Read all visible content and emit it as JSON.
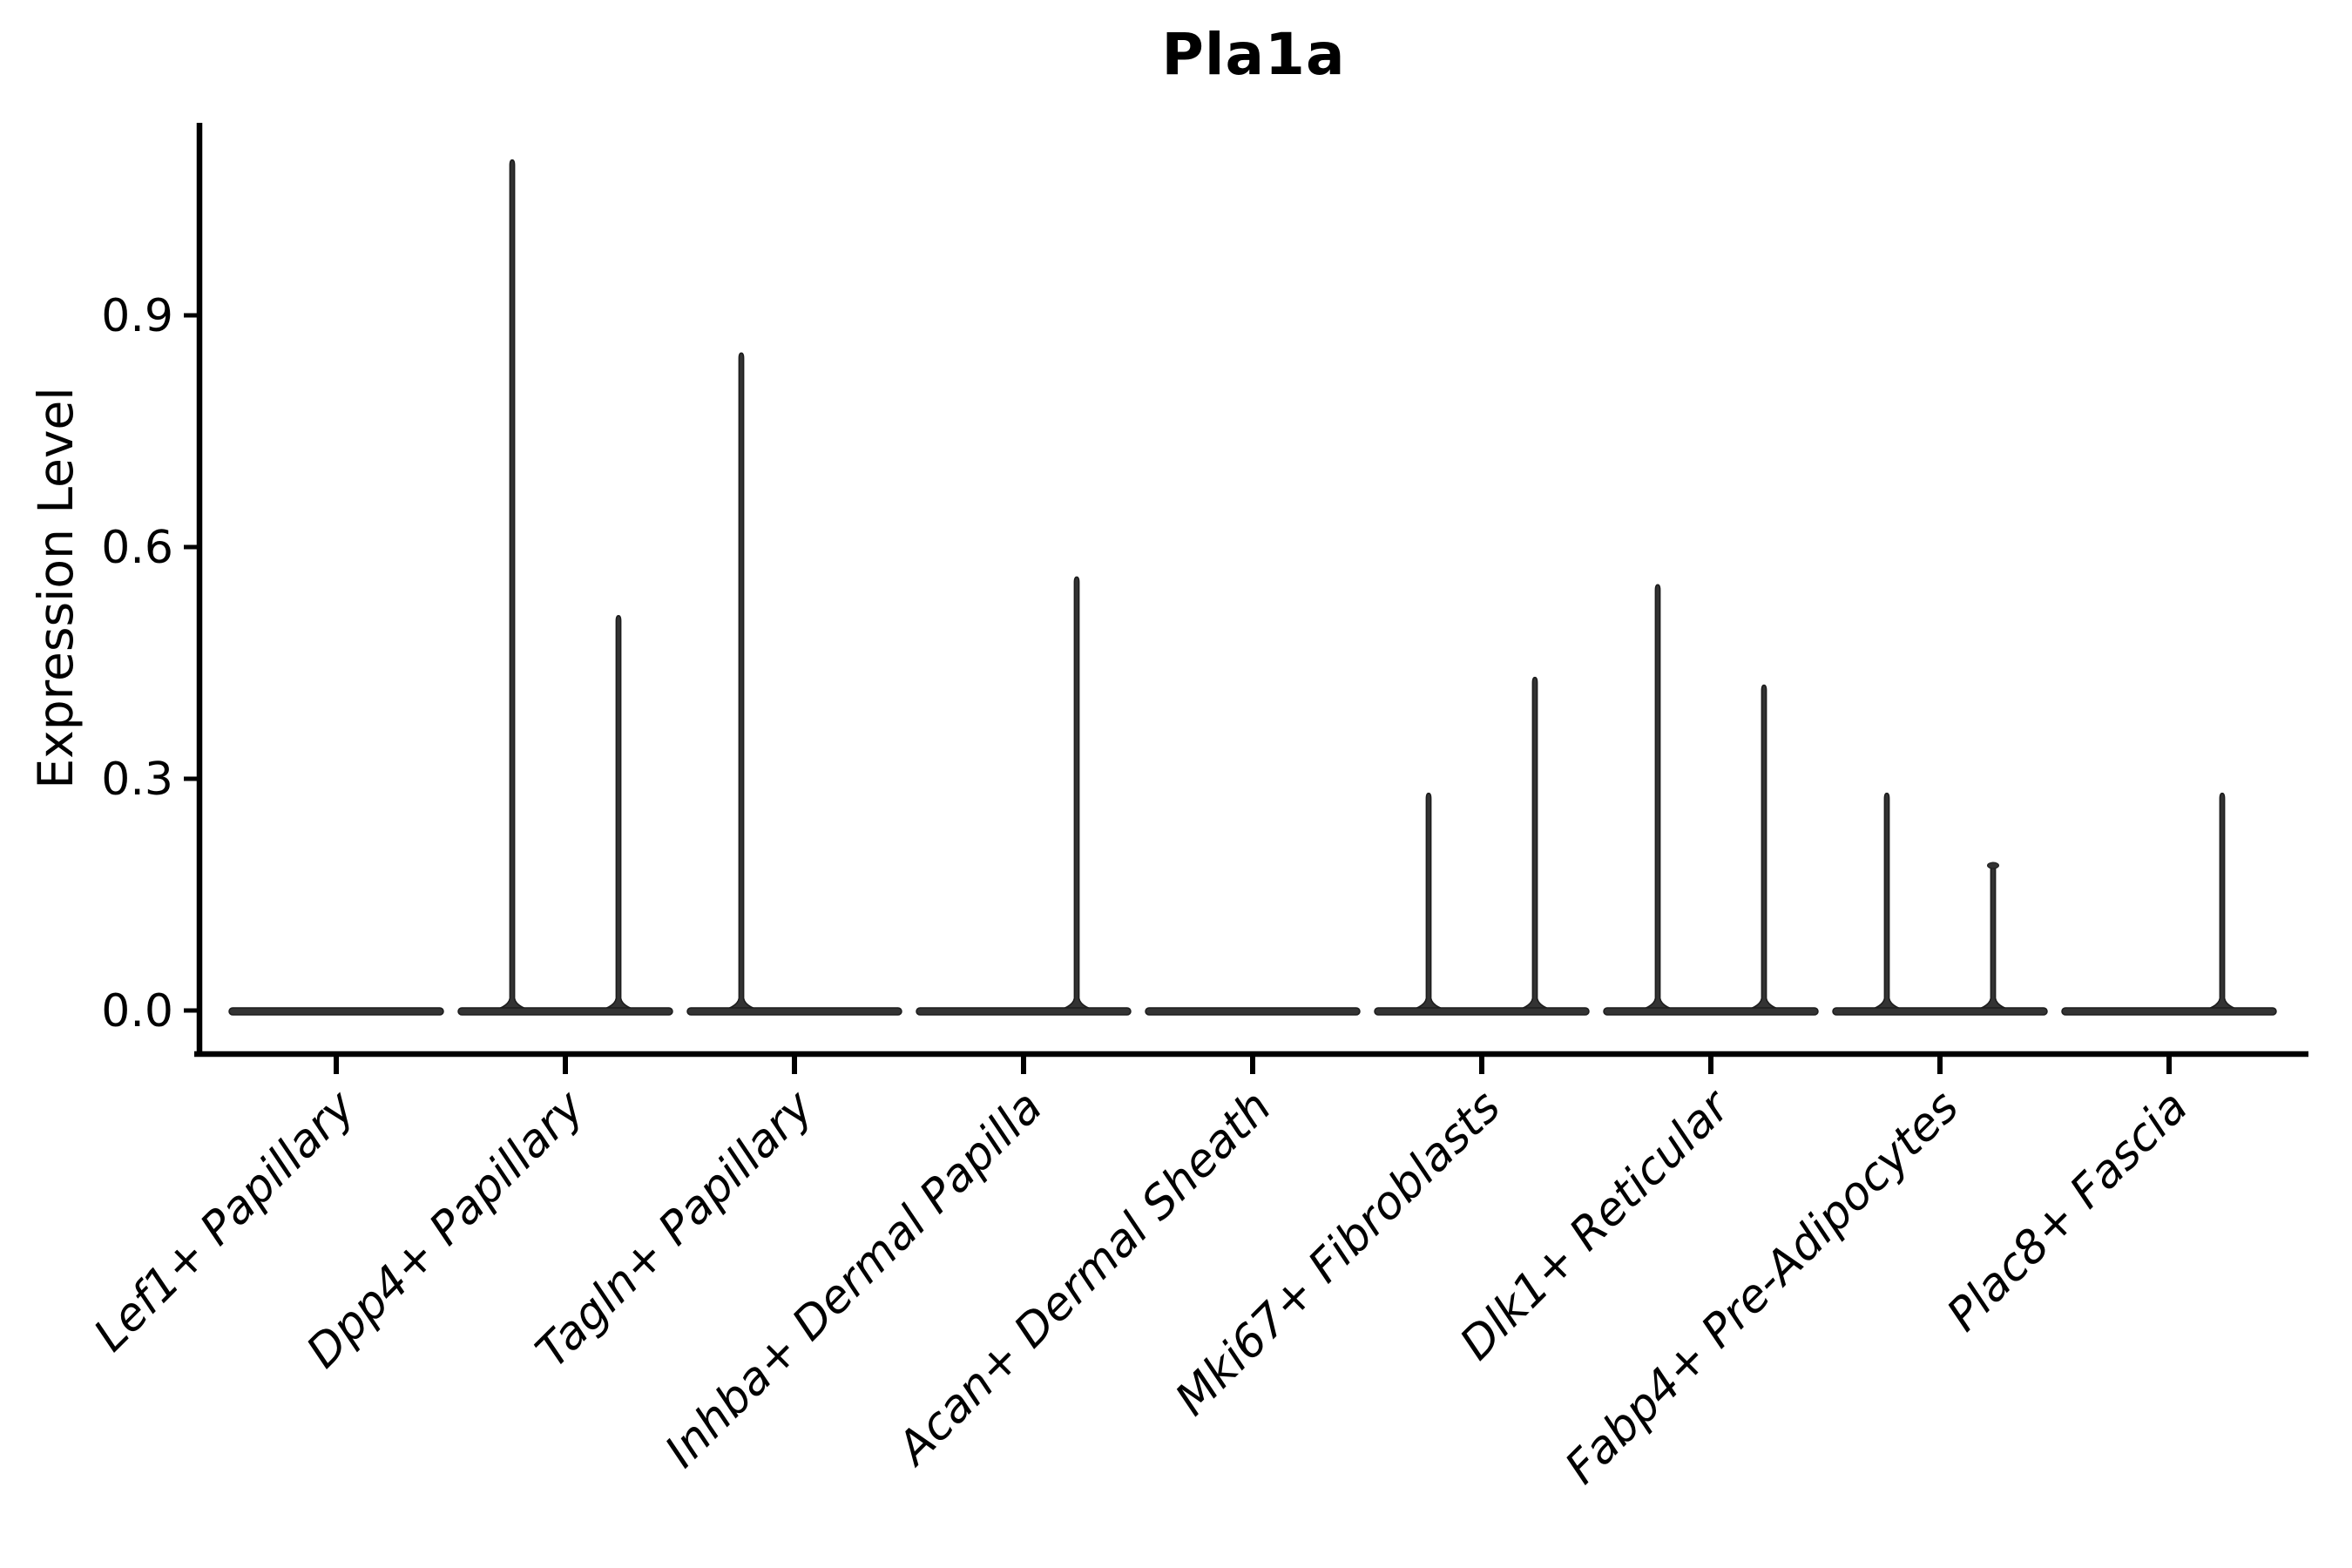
{
  "chart_data": {
    "type": "violin",
    "title": "Pla1a",
    "ylabel": "Expression Level",
    "xlabel": "",
    "ytick_labels": [
      "0.0",
      "0.3",
      "0.6",
      "0.9"
    ],
    "ylim": [
      -0.06,
      1.15
    ],
    "grid": false,
    "legend": false,
    "categories": [
      "Lef1+ Papillary",
      "Dpp4+ Papillary",
      "Tagln+ Papillary",
      "Inhba+ Dermal Papilla",
      "Acan+ Dermal Sheath",
      "Mki67+ Fibroblasts",
      "Dlk1+ Reticular",
      "Fabp4+ Pre-Adipocytes",
      "Plac8+ Fascia"
    ],
    "violins": [
      {
        "category": "Lef1+ Papillary",
        "spikes": []
      },
      {
        "category": "Dpp4+ Papillary",
        "spikes": [
          {
            "side": "left",
            "max": 1.1
          },
          {
            "side": "right",
            "max": 0.51
          }
        ]
      },
      {
        "category": "Tagln+ Papillary",
        "spikes": [
          {
            "side": "left",
            "max": 0.85
          }
        ]
      },
      {
        "category": "Inhba+ Dermal Papilla",
        "spikes": [
          {
            "side": "right",
            "max": 0.56
          }
        ]
      },
      {
        "category": "Acan+ Dermal Sheath",
        "spikes": []
      },
      {
        "category": "Mki67+ Fibroblasts",
        "spikes": [
          {
            "side": "left",
            "max": 0.28
          },
          {
            "side": "right",
            "max": 0.43
          }
        ]
      },
      {
        "category": "Dlk1+ Reticular",
        "spikes": [
          {
            "side": "left",
            "max": 0.55
          },
          {
            "side": "right",
            "max": 0.42
          }
        ]
      },
      {
        "category": "Fabp4+ Pre-Adipocytes",
        "spikes": [
          {
            "side": "left",
            "max": 0.28
          },
          {
            "side": "right",
            "max": 0.19,
            "cap": true
          }
        ]
      },
      {
        "category": "Plac8+ Fascia",
        "spikes": [
          {
            "side": "right",
            "max": 0.28
          }
        ]
      }
    ],
    "colors": {
      "violin_fill": "#333333",
      "violin_stroke": "#1c1c1c",
      "axis": "#000000",
      "text": "#000000",
      "background": "#ffffff"
    }
  }
}
